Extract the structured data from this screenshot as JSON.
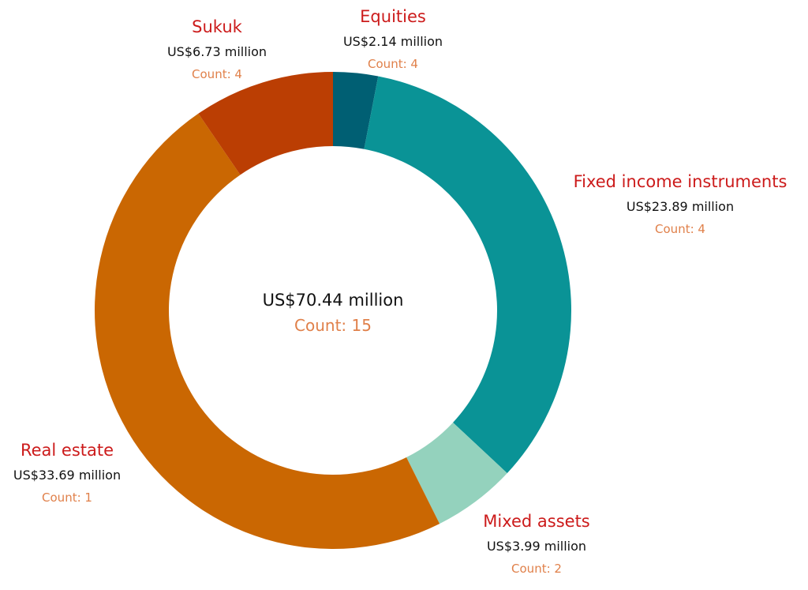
{
  "chart_data": {
    "type": "pie",
    "variant": "donut",
    "center": {
      "total": "US$70.44 million",
      "count": "Count: 15"
    },
    "slices": [
      {
        "category": "Equities",
        "value": 2.14,
        "value_label": "US$2.14 million",
        "count_label": "Count: 4",
        "color": "#005f73"
      },
      {
        "category": "Fixed income instruments",
        "value": 23.89,
        "value_label": "US$23.89 million",
        "count_label": "Count: 4",
        "color": "#0a9396"
      },
      {
        "category": "Mixed assets",
        "value": 3.99,
        "value_label": "US$3.99 million",
        "count_label": "Count: 2",
        "color": "#94d2bd"
      },
      {
        "category": "Real estate",
        "value": 33.69,
        "value_label": "US$33.69 million",
        "count_label": "Count: 1",
        "color": "#ca6702"
      },
      {
        "category": "Sukuk",
        "value": 6.73,
        "value_label": "US$6.73 million",
        "count_label": "Count: 4",
        "color": "#bb3e03"
      }
    ],
    "colors": {
      "category_label": "#cc1b1b",
      "count_label": "#e0804a",
      "value_label": "#111111"
    }
  }
}
